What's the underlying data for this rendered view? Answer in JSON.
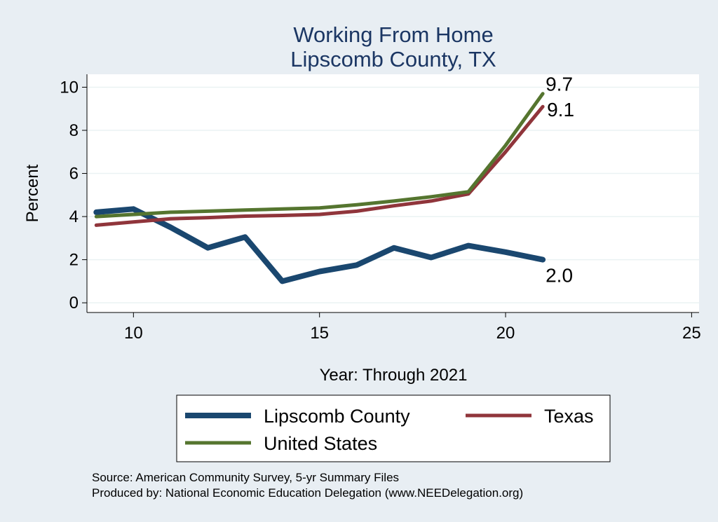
{
  "chart_data": {
    "type": "line",
    "title": [
      "Working From Home",
      "Lipscomb County, TX"
    ],
    "xlabel": "Year: Through 2021",
    "ylabel": "Percent",
    "xlim": [
      8.75,
      25.2
    ],
    "ylim": [
      -0.45,
      10.6
    ],
    "x_ticks": [
      10,
      15,
      20,
      25
    ],
    "y_ticks": [
      0,
      2,
      4,
      6,
      8,
      10
    ],
    "grid": true,
    "legend_position": "bottom",
    "x": [
      9,
      10,
      11,
      12,
      13,
      14,
      15,
      16,
      17,
      18,
      19,
      20,
      21
    ],
    "series": [
      {
        "name": "Lipscomb County",
        "color": "#1a476f",
        "values": [
          4.2,
          4.35,
          3.5,
          2.55,
          3.05,
          1.0,
          1.45,
          1.75,
          2.55,
          2.1,
          2.65,
          2.35,
          2.0
        ],
        "end_label": "2.0"
      },
      {
        "name": "Texas",
        "color": "#90353b",
        "values": [
          3.6,
          3.75,
          3.9,
          3.95,
          4.02,
          4.05,
          4.1,
          4.25,
          4.5,
          4.72,
          5.05,
          7.0,
          9.1
        ],
        "end_label": "9.1"
      },
      {
        "name": "United States",
        "color": "#55752f",
        "values": [
          4.0,
          4.1,
          4.2,
          4.25,
          4.3,
          4.35,
          4.4,
          4.55,
          4.72,
          4.92,
          5.15,
          7.3,
          9.7
        ],
        "end_label": "9.7"
      }
    ]
  },
  "source_lines": [
    "Source: American Community Survey, 5-yr Summary Files",
    "Produced by: National Economic Education Delegation (www.NEEDelegation.org)"
  ]
}
